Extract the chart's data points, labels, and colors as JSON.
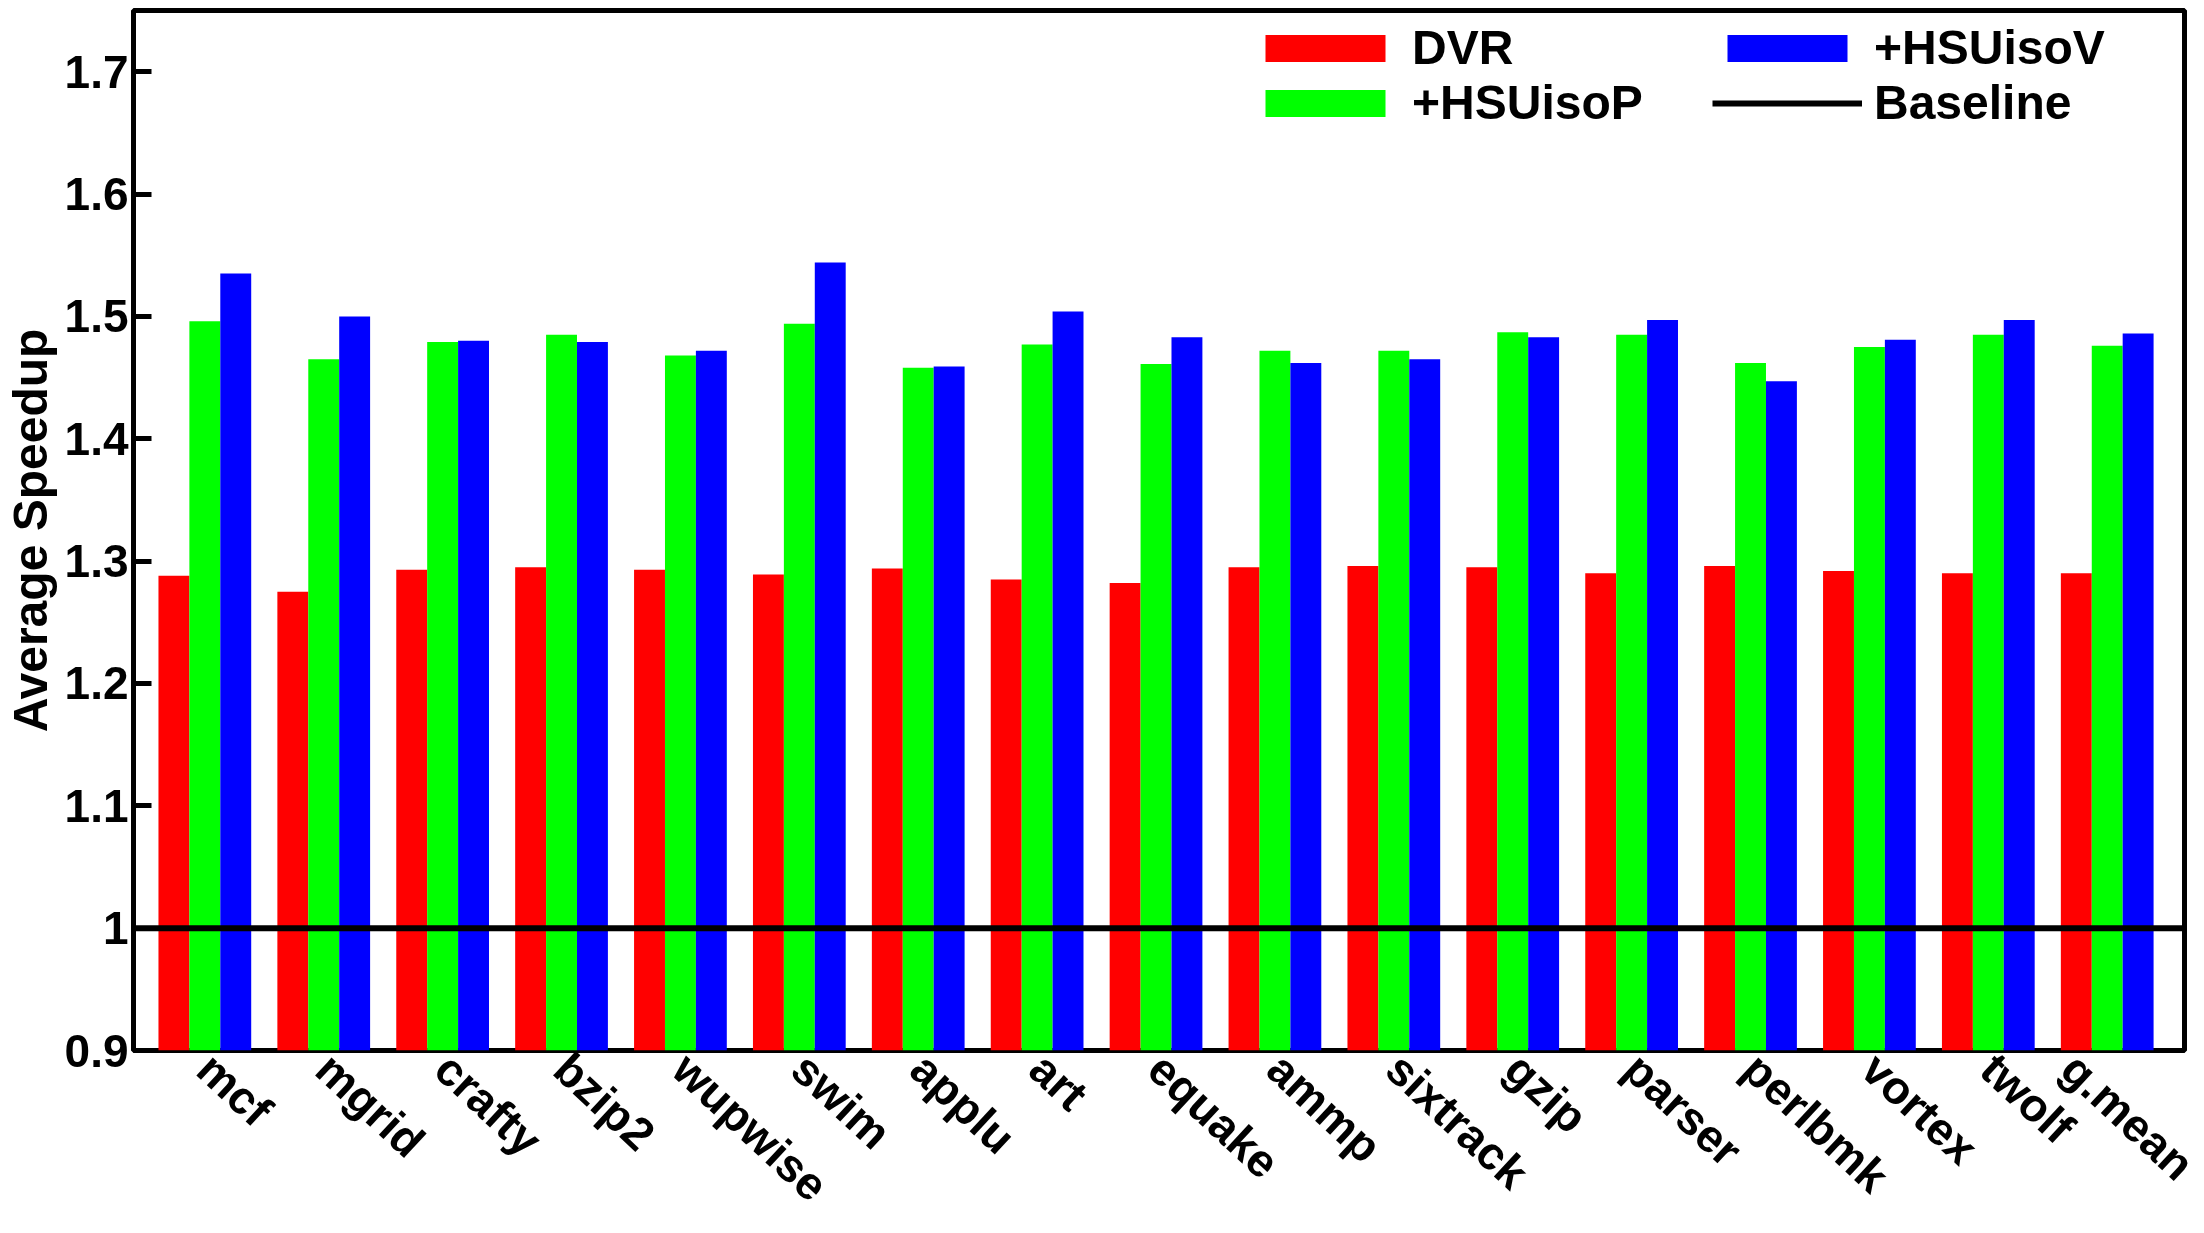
{
  "chart_data": {
    "type": "bar",
    "ylabel": "Average Speedup",
    "categories": [
      "mcf",
      "mgrid",
      "crafty",
      "bzip2",
      "wupwise",
      "swim",
      "applu",
      "art",
      "equake",
      "ammp",
      "sixtrack",
      "gzip",
      "parser",
      "perlbmk",
      "vortex",
      "twolf",
      "g.mean"
    ],
    "series": [
      {
        "name": "DVR",
        "color": "#ff0000",
        "values": [
          1.288,
          1.275,
          1.293,
          1.295,
          1.293,
          1.289,
          1.294,
          1.285,
          1.282,
          1.295,
          1.296,
          1.295,
          1.29,
          1.296,
          1.292,
          1.29,
          1.29
        ]
      },
      {
        "name": "+HSUisoP",
        "color": "#00ff00",
        "values": [
          1.496,
          1.465,
          1.479,
          1.485,
          1.468,
          1.494,
          1.458,
          1.477,
          1.461,
          1.472,
          1.472,
          1.487,
          1.485,
          1.462,
          1.475,
          1.485,
          1.476
        ]
      },
      {
        "name": "+HSUisoV",
        "color": "#0000ff",
        "values": [
          1.535,
          1.5,
          1.48,
          1.479,
          1.472,
          1.544,
          1.459,
          1.504,
          1.483,
          1.462,
          1.465,
          1.483,
          1.497,
          1.447,
          1.481,
          1.497,
          1.486
        ]
      }
    ],
    "ref_lines": [
      {
        "axis": "y",
        "value": 1,
        "label": "Baseline",
        "color": "#000000"
      }
    ],
    "ylim": [
      0.9,
      1.75
    ],
    "yticks": [
      0.9,
      1,
      1.1,
      1.2,
      1.3,
      1.4,
      1.5,
      1.6,
      1.7
    ],
    "grid": false,
    "legend": "top right"
  }
}
